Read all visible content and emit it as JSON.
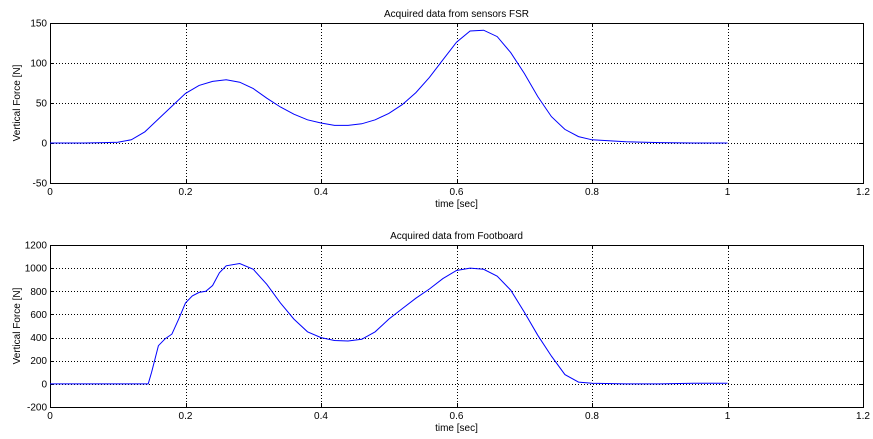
{
  "chart_data": [
    {
      "type": "line",
      "title": "Acquired data from sensors FSR",
      "xlabel": "time [sec]",
      "ylabel": "Vertical Force [N]",
      "xlim": [
        0,
        1.2
      ],
      "ylim": [
        -50,
        150
      ],
      "xticks": [
        0,
        0.2,
        0.4,
        0.6,
        0.8,
        1,
        1.2
      ],
      "xtick_labels": [
        "0",
        "0.2",
        "0.4",
        "0.6",
        "0.8",
        "1",
        "1.2"
      ],
      "yticks": [
        -50,
        0,
        50,
        100,
        150
      ],
      "ytick_labels": [
        "-50",
        "0",
        "50",
        "100",
        "150"
      ],
      "grid": true,
      "color": "#0000ff",
      "x": [
        0,
        0.05,
        0.08,
        0.1,
        0.12,
        0.14,
        0.16,
        0.18,
        0.2,
        0.22,
        0.24,
        0.26,
        0.28,
        0.3,
        0.32,
        0.34,
        0.36,
        0.38,
        0.4,
        0.42,
        0.44,
        0.46,
        0.48,
        0.5,
        0.52,
        0.54,
        0.56,
        0.58,
        0.6,
        0.62,
        0.64,
        0.66,
        0.68,
        0.7,
        0.72,
        0.74,
        0.76,
        0.78,
        0.8,
        0.85,
        0.9,
        0.95,
        1.0
      ],
      "y": [
        0,
        0,
        0.5,
        1,
        4,
        14,
        30,
        46,
        62,
        72,
        77,
        79,
        76,
        68,
        56,
        45,
        36,
        29,
        25,
        22,
        22,
        24,
        29,
        37,
        48,
        63,
        82,
        104,
        126,
        140,
        141,
        133,
        113,
        87,
        58,
        33,
        17,
        8,
        4,
        1.5,
        0.5,
        0,
        0
      ]
    },
    {
      "type": "line",
      "title": "Acquired data from Footboard",
      "xlabel": "time [sec]",
      "ylabel": "Vertical Force [N]",
      "xlim": [
        0,
        1.2
      ],
      "ylim": [
        -200,
        1200
      ],
      "xticks": [
        0,
        0.2,
        0.4,
        0.6,
        0.8,
        1,
        1.2
      ],
      "xtick_labels": [
        "0",
        "0.2",
        "0.4",
        "0.6",
        "0.8",
        "1",
        "1.2"
      ],
      "yticks": [
        -200,
        0,
        200,
        400,
        600,
        800,
        1000,
        1200
      ],
      "ytick_labels": [
        "-200",
        "0",
        "200",
        "400",
        "600",
        "800",
        "1000",
        "1200"
      ],
      "grid": true,
      "color": "#0000ff",
      "x": [
        0,
        0.04,
        0.08,
        0.12,
        0.145,
        0.15,
        0.16,
        0.17,
        0.18,
        0.19,
        0.2,
        0.21,
        0.22,
        0.23,
        0.24,
        0.25,
        0.26,
        0.28,
        0.3,
        0.32,
        0.34,
        0.36,
        0.38,
        0.4,
        0.42,
        0.44,
        0.46,
        0.48,
        0.5,
        0.52,
        0.54,
        0.56,
        0.58,
        0.6,
        0.62,
        0.64,
        0.66,
        0.68,
        0.7,
        0.72,
        0.74,
        0.76,
        0.78,
        0.8,
        0.85,
        0.9,
        0.95,
        1.0
      ],
      "y": [
        0,
        0,
        0,
        0,
        0,
        100,
        330,
        390,
        430,
        560,
        700,
        760,
        790,
        800,
        850,
        960,
        1020,
        1040,
        990,
        860,
        700,
        560,
        450,
        400,
        375,
        370,
        385,
        450,
        560,
        650,
        740,
        820,
        910,
        980,
        1000,
        990,
        930,
        810,
        620,
        420,
        240,
        80,
        15,
        5,
        0,
        0,
        5,
        5
      ]
    }
  ]
}
